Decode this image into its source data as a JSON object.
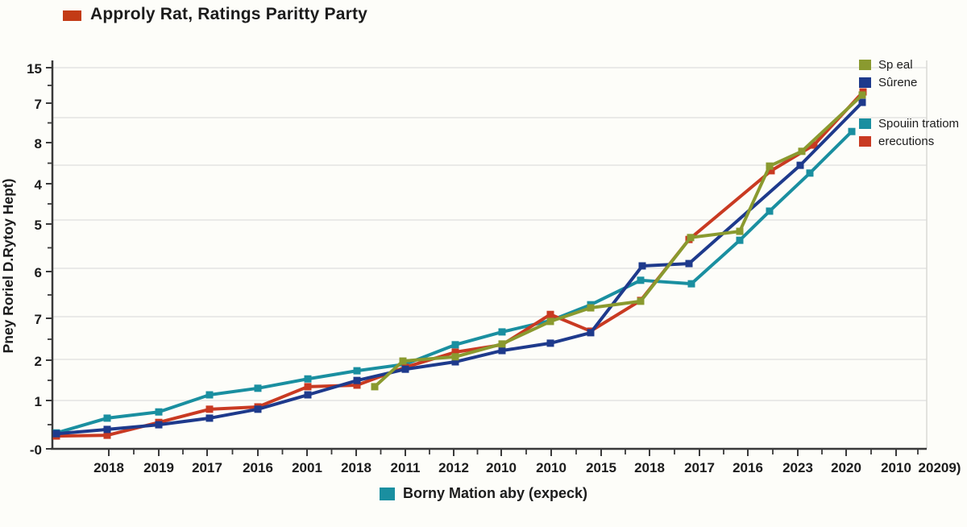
{
  "title": {
    "text": "Approly Rat, Ratings Paritty Party",
    "swatch_color": "#c33b16"
  },
  "y_axis": {
    "title": "Pney Roriel D.Rytoy Hept)",
    "tick_labels": [
      "15",
      "7",
      "8",
      "4",
      "5",
      "6",
      "7",
      "2",
      "1",
      "-0"
    ]
  },
  "x_axis": {
    "tick_labels": [
      "2018",
      "2019",
      "2017",
      "2016",
      "2001",
      "2018",
      "2011",
      "2012",
      "2010",
      "2010",
      "2015",
      "2018",
      "2017",
      "2016",
      "2023",
      "2020",
      "2010",
      "20209)"
    ],
    "legend": {
      "label": "Borny Mation aby (expeck)",
      "color": "#1a8fa0"
    }
  },
  "legend": {
    "position": "top-right",
    "items": [
      {
        "label": "Sp eal",
        "color": "#8a9a2f"
      },
      {
        "label": "Sûrene",
        "color": "#1e3a8c"
      },
      {
        "label": "Spouiin tratiom",
        "color": "#1a8fa0"
      },
      {
        "label": "erecutions",
        "color": "#c93a22"
      }
    ]
  },
  "chart_data": {
    "type": "line",
    "title": "Approly Rat, Ratings Paritty Party",
    "ylabel": "Pney Roriel D.Rytoy Hept)",
    "x_tick_labels": [
      "2018",
      "2019",
      "2017",
      "2016",
      "2001",
      "2018",
      "2011",
      "2012",
      "2010",
      "2010",
      "2015",
      "2018",
      "2017",
      "2016",
      "2023",
      "2020",
      "2010",
      "20209)"
    ],
    "y_tick_labels": [
      "15",
      "7",
      "8",
      "4",
      "5",
      "6",
      "7",
      "2",
      "1",
      "-0"
    ],
    "x_legend": "Borny Mation aby (expeck)",
    "value_scale": "relative units: 0 = bottom axis, 10 = top axis (printed tick labels are garbled/non-monotonic)",
    "grid": true,
    "legend_position": "top-right",
    "marker": "square",
    "series": [
      {
        "name": "Sp eal",
        "color": "#8a9a2f",
        "points": [
          {
            "x": 465,
            "v": 1.6
          },
          {
            "x": 500,
            "v": 2.26
          },
          {
            "x": 565,
            "v": 2.37
          },
          {
            "x": 623,
            "v": 2.7
          },
          {
            "x": 683,
            "v": 3.28
          },
          {
            "x": 733,
            "v": 3.63
          },
          {
            "x": 795,
            "v": 3.8
          },
          {
            "x": 857,
            "v": 5.44
          },
          {
            "x": 918,
            "v": 5.6
          },
          {
            "x": 955,
            "v": 7.28
          },
          {
            "x": 995,
            "v": 7.66
          },
          {
            "x": 1070,
            "v": 9.11
          }
        ]
      },
      {
        "name": "Sûrene",
        "color": "#1e3a8c",
        "points": [
          {
            "x": 70,
            "v": 0.39
          },
          {
            "x": 133,
            "v": 0.5
          },
          {
            "x": 197,
            "v": 0.62
          },
          {
            "x": 260,
            "v": 0.79
          },
          {
            "x": 320,
            "v": 1.02
          },
          {
            "x": 382,
            "v": 1.39
          },
          {
            "x": 443,
            "v": 1.76
          },
          {
            "x": 503,
            "v": 2.05
          },
          {
            "x": 565,
            "v": 2.24
          },
          {
            "x": 623,
            "v": 2.53
          },
          {
            "x": 683,
            "v": 2.72
          },
          {
            "x": 733,
            "v": 2.99
          },
          {
            "x": 797,
            "v": 4.71
          },
          {
            "x": 855,
            "v": 4.77
          },
          {
            "x": 993,
            "v": 7.3
          },
          {
            "x": 1070,
            "v": 8.92
          }
        ]
      },
      {
        "name": "Spouiin tratiom",
        "color": "#1a8fa0",
        "points": [
          {
            "x": 70,
            "v": 0.41
          },
          {
            "x": 133,
            "v": 0.79
          },
          {
            "x": 197,
            "v": 0.95
          },
          {
            "x": 260,
            "v": 1.39
          },
          {
            "x": 320,
            "v": 1.56
          },
          {
            "x": 382,
            "v": 1.8
          },
          {
            "x": 443,
            "v": 2.01
          },
          {
            "x": 503,
            "v": 2.18
          },
          {
            "x": 565,
            "v": 2.68
          },
          {
            "x": 623,
            "v": 3.01
          },
          {
            "x": 683,
            "v": 3.3
          },
          {
            "x": 733,
            "v": 3.71
          },
          {
            "x": 795,
            "v": 4.34
          },
          {
            "x": 858,
            "v": 4.25
          },
          {
            "x": 918,
            "v": 5.37
          },
          {
            "x": 955,
            "v": 6.12
          },
          {
            "x": 1005,
            "v": 7.1
          },
          {
            "x": 1057,
            "v": 8.17
          }
        ]
      },
      {
        "name": "erecutions",
        "color": "#c93a22",
        "points": [
          {
            "x": 70,
            "v": 0.33
          },
          {
            "x": 133,
            "v": 0.35
          },
          {
            "x": 197,
            "v": 0.68
          },
          {
            "x": 260,
            "v": 1.02
          },
          {
            "x": 320,
            "v": 1.08
          },
          {
            "x": 382,
            "v": 1.6
          },
          {
            "x": 443,
            "v": 1.64
          },
          {
            "x": 503,
            "v": 2.1
          },
          {
            "x": 565,
            "v": 2.49
          },
          {
            "x": 623,
            "v": 2.68
          },
          {
            "x": 683,
            "v": 3.46
          },
          {
            "x": 733,
            "v": 3.03
          },
          {
            "x": 795,
            "v": 3.82
          },
          {
            "x": 855,
            "v": 5.39
          },
          {
            "x": 957,
            "v": 7.16
          },
          {
            "x": 1010,
            "v": 7.82
          },
          {
            "x": 1071,
            "v": 9.19
          }
        ]
      }
    ]
  }
}
